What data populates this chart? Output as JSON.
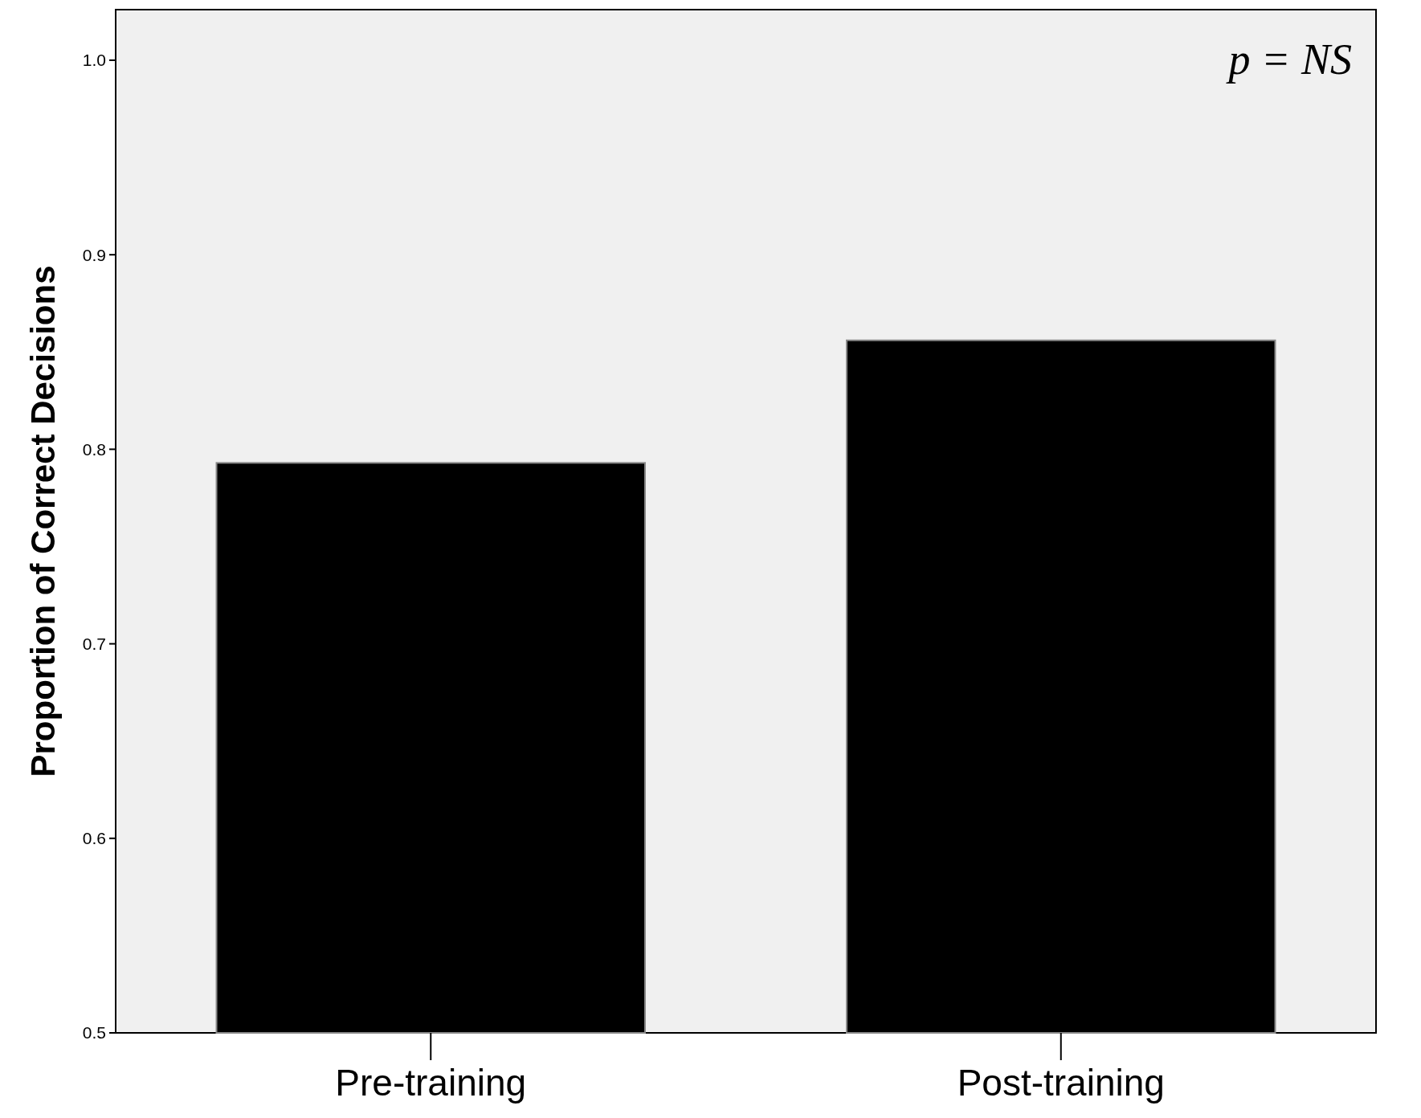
{
  "chart_data": {
    "type": "bar",
    "ylabel": "Proportion of Correct Decisions",
    "categories": [
      "Pre-training",
      "Post-training"
    ],
    "values": [
      0.793,
      0.856
    ],
    "color": "#000000",
    "ylim": [
      0.5,
      1.026
    ],
    "yticks": [
      {
        "value": 0.5,
        "label": "0.5"
      },
      {
        "value": 0.6,
        "label": "0.6"
      },
      {
        "value": 0.7,
        "label": "0.7"
      },
      {
        "value": 0.8,
        "label": "0.8"
      },
      {
        "value": 0.9,
        "label": "0.9"
      },
      {
        "value": 1.0,
        "label": "1.0"
      }
    ],
    "annotations": [
      "p = NS"
    ],
    "grid": false
  }
}
